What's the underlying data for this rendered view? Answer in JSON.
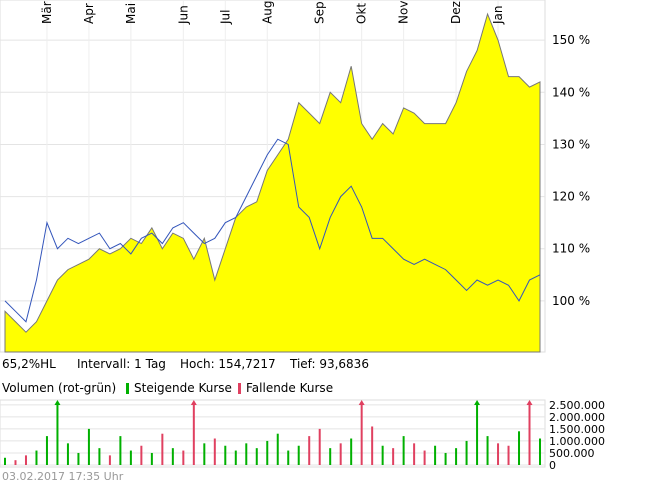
{
  "chart_data": {
    "type": "area",
    "categories": [
      null,
      null,
      null,
      null,
      "Mär",
      null,
      null,
      null,
      "Apr",
      null,
      null,
      null,
      "Mai",
      null,
      null,
      null,
      null,
      "Jun",
      null,
      null,
      null,
      "Jul",
      null,
      null,
      null,
      "Aug",
      null,
      null,
      null,
      null,
      "Sep",
      null,
      null,
      null,
      "Okt",
      null,
      null,
      null,
      "Nov",
      null,
      null,
      null,
      null,
      "Dez",
      null,
      null,
      null,
      "Jan",
      null,
      null,
      null,
      null
    ],
    "series": [
      {
        "color": "#ffff00",
        "values": [
          98,
          96,
          94,
          96,
          100,
          104,
          106,
          107,
          108,
          110,
          109,
          110,
          112,
          111,
          114,
          110,
          113,
          112,
          108,
          112,
          104,
          110,
          116,
          118,
          119,
          125,
          128,
          131,
          138,
          136,
          134,
          140,
          138,
          145,
          134,
          131,
          134,
          132,
          137,
          136,
          134,
          134,
          134,
          138,
          144,
          148,
          155,
          150,
          143,
          143,
          141,
          142
        ]
      },
      {
        "color": "#3355bb",
        "values": [
          100,
          98,
          96,
          104,
          115,
          110,
          112,
          111,
          112,
          113,
          110,
          111,
          109,
          112,
          113,
          111,
          114,
          115,
          113,
          111,
          112,
          115,
          116,
          120,
          124,
          128,
          131,
          130,
          118,
          116,
          110,
          116,
          120,
          122,
          118,
          112,
          112,
          110,
          108,
          107,
          108,
          107,
          106,
          104,
          102,
          104,
          103,
          104,
          103,
          100,
          104,
          105
        ]
      }
    ],
    "ylim": [
      90.2,
      157.7
    ],
    "yticks": [
      {
        "value": 100,
        "label": "100 %"
      },
      {
        "value": 110,
        "label": "110 %"
      },
      {
        "value": 120,
        "label": "120 %"
      },
      {
        "value": 130,
        "label": "130 %"
      },
      {
        "value": 140,
        "label": "140 %"
      },
      {
        "value": 150,
        "label": "150 %"
      }
    ],
    "grid": true,
    "info": [
      "65,2%HL",
      "Intervall: 1 Tag",
      "Hoch: 154,7217",
      "Tief: 93,6836"
    ],
    "volume": {
      "title": "Volumen (rot-grün)",
      "up_label": "Steigende Kurse",
      "up_color": "#00b000",
      "down_label": "Fallende Kurse",
      "down_color": "#e04060",
      "values": [
        300000,
        200000,
        400000,
        600000,
        1200000,
        3000000,
        900000,
        500000,
        1500000,
        700000,
        400000,
        1200000,
        600000,
        800000,
        500000,
        1300000,
        700000,
        600000,
        3000000,
        900000,
        1100000,
        800000,
        600000,
        900000,
        700000,
        1000000,
        1300000,
        600000,
        800000,
        1200000,
        1500000,
        700000,
        900000,
        1100000,
        3000000,
        1600000,
        800000,
        700000,
        1200000,
        900000,
        600000,
        800000,
        500000,
        700000,
        1000000,
        3000000,
        1200000,
        900000,
        800000,
        1400000,
        2800000,
        1100000
      ],
      "ylim": [
        0,
        2700000
      ],
      "yticks": [
        0,
        {
          "value": 500000,
          "label": "500.000"
        },
        {
          "value": 1000000,
          "label": "1.000.000"
        },
        {
          "value": 1500000,
          "label": "1.500.000"
        },
        {
          "value": 2000000,
          "label": "2.000.000"
        },
        {
          "value": 2500000,
          "label": "2.500.000"
        }
      ]
    },
    "footer": "03.02.2017 17:35 Uhr"
  }
}
